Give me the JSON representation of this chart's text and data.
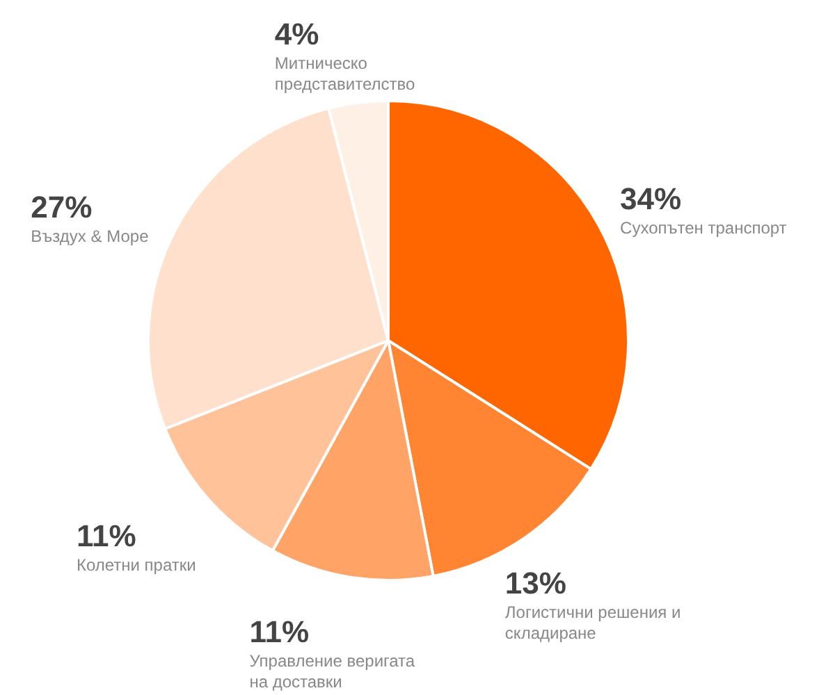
{
  "chart_data": {
    "type": "pie",
    "categories": [
      "Сухопътен транспорт",
      "Логистични решения и складиране",
      "Управление веригата на доставки",
      "Колетни пратки",
      "Въздух & Море",
      "Митническо представителство"
    ],
    "values": [
      34,
      13,
      11,
      11,
      27,
      4
    ],
    "colors": [
      "#ff6600",
      "#ff8533",
      "#ffa366",
      "#ffc299",
      "#ffe0cc",
      "#fff0e6"
    ],
    "value_labels": [
      "34%",
      "13%",
      "11%",
      "11%",
      "27%",
      "4%"
    ]
  }
}
